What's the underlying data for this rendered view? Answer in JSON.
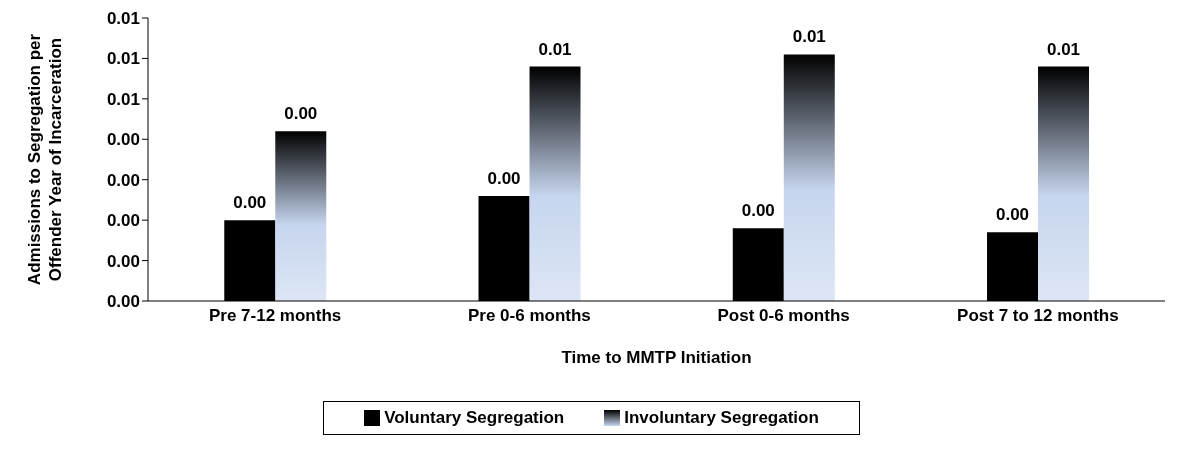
{
  "chart_data": {
    "type": "bar",
    "xlabel": "Time to MMTP Initiation",
    "ylabel": "Admissions to Segregation per Offender Year of Incarceration",
    "categories": [
      "Pre 7-12 months",
      "Pre 0-6 months",
      "Post 0-6 months",
      "Post 7 to 12 months"
    ],
    "series": [
      {
        "name": "Voluntary Segregation",
        "color": "#000000",
        "values": [
          0.002,
          0.0026,
          0.0018,
          0.0017
        ],
        "value_labels": [
          "0.00",
          "0.00",
          "0.00",
          "0.00"
        ]
      },
      {
        "name": "Involuntary Segregation",
        "color": "#c6d5ee",
        "values": [
          0.0042,
          0.0058,
          0.0061,
          0.0058
        ],
        "value_labels": [
          "0.00",
          "0.01",
          "0.01",
          "0.01"
        ]
      }
    ],
    "ylim": [
      0,
      0.007
    ],
    "yticks": [
      {
        "value": 0,
        "label": "0.00"
      },
      {
        "value": 0.001,
        "label": "0.00"
      },
      {
        "value": 0.002,
        "label": "0.00"
      },
      {
        "value": 0.003,
        "label": "0.00"
      },
      {
        "value": 0.004,
        "label": "0.00"
      },
      {
        "value": 0.005,
        "label": "0.01"
      },
      {
        "value": 0.006,
        "label": "0.01"
      },
      {
        "value": 0.007,
        "label": "0.01"
      }
    ],
    "legend": "bottom"
  }
}
